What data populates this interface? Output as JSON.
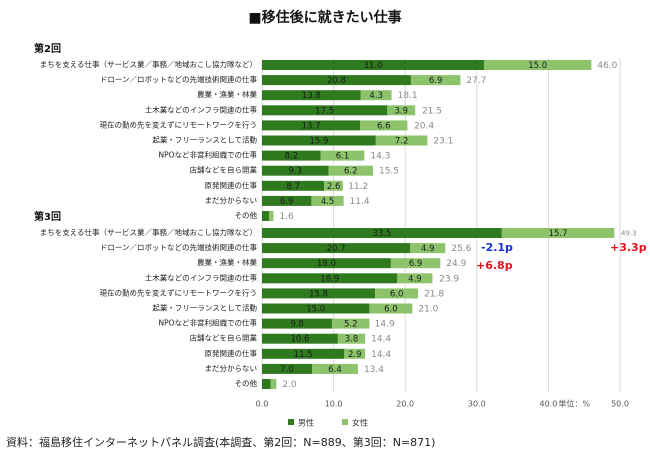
{
  "chart_data": {
    "type": "grouped-stacked-hbar",
    "title": "■移住後に就きたい仕事",
    "categories": [
      "まちを支える仕事（サービス業／事務／地域おこし協力隊など）",
      "ドローン／ロボットなどの先端技術関連の仕事",
      "農業・漁業・林業",
      "土木業などのインフラ関連の仕事",
      "現在の勤め先を変えずにリモートワークを行う",
      "起業・フリーランスとして活動",
      "NPOなど非営利組織での仕事",
      "店舗などを自ら開業",
      "原発関連の仕事",
      "まだ分からない",
      "その他"
    ],
    "series": [
      {
        "name": "男性",
        "color": "#2f7a1f"
      },
      {
        "name": "女性",
        "color": "#8dc46b"
      }
    ],
    "groups": [
      {
        "label": "第2回",
        "values": [
          [
            31.0,
            20.8,
            13.8,
            17.5,
            13.7,
            15.9,
            8.2,
            9.3,
            8.7,
            6.9,
            1.0
          ],
          [
            15.0,
            6.9,
            4.3,
            3.9,
            6.6,
            7.2,
            6.1,
            6.2,
            2.6,
            4.5,
            0.6
          ]
        ],
        "value_labels": [
          [
            "31.0",
            "20.8",
            "13.8",
            "17.5",
            "13.7",
            "15.9",
            "8.2",
            "9.3",
            "8.7",
            "6.9",
            null
          ],
          [
            "15.0",
            "6.9",
            "4.3",
            "3.9",
            "6.6",
            "7.2",
            "6.1",
            "6.2",
            "2.6",
            "4.5",
            null
          ]
        ],
        "totals": [
          46.0,
          27.7,
          18.1,
          21.5,
          20.4,
          23.1,
          14.3,
          15.5,
          11.2,
          11.4,
          1.6
        ],
        "total_labels": [
          "46.0",
          "27.7",
          "18.1",
          "21.5",
          "20.4",
          "23.1",
          "14.3",
          "15.5",
          "11.2",
          "11.4",
          "1.6"
        ]
      },
      {
        "label": "第3回",
        "values": [
          [
            33.5,
            20.7,
            18.0,
            18.9,
            15.8,
            15.0,
            9.8,
            10.6,
            11.5,
            7.0,
            1.2
          ],
          [
            15.7,
            4.9,
            6.9,
            4.9,
            6.0,
            6.0,
            5.2,
            3.8,
            2.9,
            6.4,
            0.8
          ]
        ],
        "value_labels": [
          [
            "33.5",
            "20.7",
            "18.0",
            "18.9",
            "15.8",
            "15.0",
            "9.8",
            "10.6",
            "11.5",
            "7.0",
            null
          ],
          [
            "15.7",
            "4.9",
            "6.9",
            "4.9",
            "6.0",
            "6.0",
            "5.2",
            "3.8",
            "2.9",
            "6.4",
            null
          ]
        ],
        "totals": [
          49.3,
          25.6,
          24.9,
          23.9,
          21.8,
          21.0,
          14.9,
          14.4,
          14.4,
          13.4,
          2.0
        ],
        "total_labels": [
          "49.3",
          "25.6",
          "24.9",
          "23.9",
          "21.8",
          "21.0",
          "14.9",
          "14.4",
          "14.4",
          "13.4",
          "2.0"
        ]
      }
    ],
    "xlim": [
      0,
      50
    ],
    "xticks": [
      {
        "value": 0,
        "label": "0.0"
      },
      {
        "value": 10,
        "label": "10.0"
      },
      {
        "value": 20,
        "label": "20.0"
      },
      {
        "value": 30,
        "label": "30.0"
      },
      {
        "value": 40,
        "label": "40.0"
      },
      {
        "value": 50,
        "label": "50.0"
      }
    ],
    "grid": true,
    "unit_label": "単位：%",
    "annotations": [
      {
        "text": "-2.1p",
        "color": "#1a2fd0"
      },
      {
        "text": "+3.3p",
        "color": "#e0141e"
      },
      {
        "text": "+6.8p",
        "color": "#e0141e"
      }
    ],
    "source": "資料：福島移住インターネットパネル調査(本調査、第2回：N=889、第3回：N=871)"
  }
}
